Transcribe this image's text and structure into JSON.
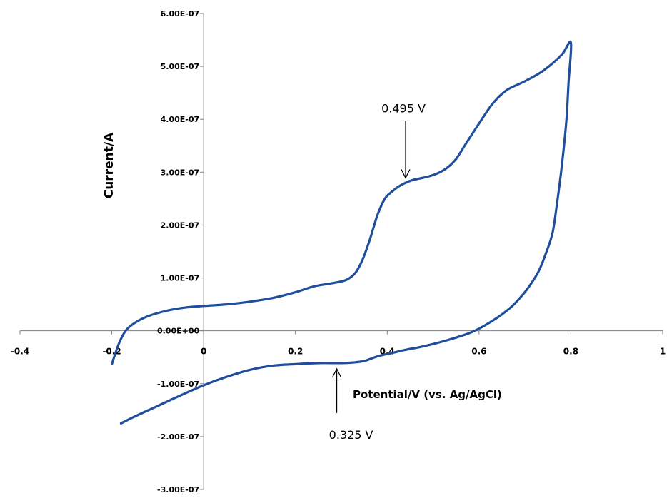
{
  "chart_data": {
    "type": "line",
    "title": "",
    "xlabel": "Potential/V (vs. Ag/AgCl)",
    "ylabel": "Current/A",
    "xlim": [
      -0.4,
      1
    ],
    "ylim": [
      -3e-07,
      6e-07
    ],
    "x_ticks": [
      -0.4,
      -0.2,
      0,
      0.2,
      0.4,
      0.6,
      0.8,
      1
    ],
    "x_tick_labels": [
      "-0.4",
      "-0.2",
      "0",
      "0.2",
      "0.4",
      "0.6",
      "0.8",
      "1"
    ],
    "y_ticks": [
      6e-07,
      5e-07,
      4e-07,
      3e-07,
      2e-07,
      1e-07,
      0,
      -1e-07,
      -2e-07,
      -3e-07
    ],
    "y_tick_labels": [
      "6.00E-07",
      "5.00E-07",
      "4.00E-07",
      "3.00E-07",
      "2.00E-07",
      "1.00E-07",
      "0.00E+00",
      "-1.00E-07",
      "-2.00E-07",
      "-3.00E-07"
    ],
    "grid": false,
    "legend": "none",
    "series": [
      {
        "color": "#1f4e9c",
        "x": [
          -0.2,
          -0.185,
          -0.17,
          -0.15,
          -0.12,
          -0.08,
          -0.04,
          0.0,
          0.05,
          0.1,
          0.15,
          0.2,
          0.24,
          0.28,
          0.31,
          0.33,
          0.345,
          0.36,
          0.37,
          0.38,
          0.395,
          0.41,
          0.425,
          0.44,
          0.455,
          0.47,
          0.49,
          0.51,
          0.53,
          0.55,
          0.57,
          0.6,
          0.63,
          0.66,
          0.7,
          0.74,
          0.78,
          0.8,
          0.795,
          0.79,
          0.78,
          0.77,
          0.76,
          0.745,
          0.73,
          0.71,
          0.69,
          0.67,
          0.645,
          0.62,
          0.6,
          0.58,
          0.56,
          0.53,
          0.5,
          0.47,
          0.44,
          0.41,
          0.38,
          0.35,
          0.325,
          0.3,
          0.25,
          0.2,
          0.15,
          0.1,
          0.05,
          0.0,
          -0.05,
          -0.1,
          -0.15,
          -0.18
        ],
        "y": [
          -6.3e-08,
          -2.5e-08,
          0.0,
          1.5e-08,
          2.8e-08,
          3.8e-08,
          4.4e-08,
          4.7e-08,
          5e-08,
          5.5e-08,
          6.2e-08,
          7.3e-08,
          8.4e-08,
          9e-08,
          9.6e-08,
          1.09e-07,
          1.32e-07,
          1.67e-07,
          1.95e-07,
          2.22e-07,
          2.5e-07,
          2.63e-07,
          2.73e-07,
          2.8e-07,
          2.85e-07,
          2.88e-07,
          2.92e-07,
          2.98e-07,
          3.08e-07,
          3.25e-07,
          3.52e-07,
          3.92e-07,
          4.3e-07,
          4.55e-07,
          4.72e-07,
          4.92e-07,
          5.22e-07,
          5.45e-07,
          4.7e-07,
          3.95e-07,
          3.1e-07,
          2.42e-07,
          1.85e-07,
          1.45e-07,
          1.13e-07,
          8.5e-08,
          6.3e-08,
          4.5e-08,
          2.8e-08,
          1.4e-08,
          4e-09,
          -4e-09,
          -1e-08,
          -1.8e-08,
          -2.5e-08,
          -3.1e-08,
          -3.6e-08,
          -4.2e-08,
          -4.8e-08,
          -5.7e-08,
          -6e-08,
          -6.1e-08,
          -6.1e-08,
          -6.3e-08,
          -6.6e-08,
          -7.4e-08,
          -8.7e-08,
          -1.03e-07,
          -1.22e-07,
          -1.42e-07,
          -1.62e-07,
          -1.75e-07
        ]
      }
    ],
    "annotations": [
      {
        "text": "0.495 V",
        "arrow_x": 0.44,
        "arrow_y": 2.85e-07,
        "direction": "down"
      },
      {
        "text": "0.325 V",
        "arrow_x": 0.29,
        "arrow_y": -6.1e-08,
        "direction": "up"
      }
    ]
  }
}
